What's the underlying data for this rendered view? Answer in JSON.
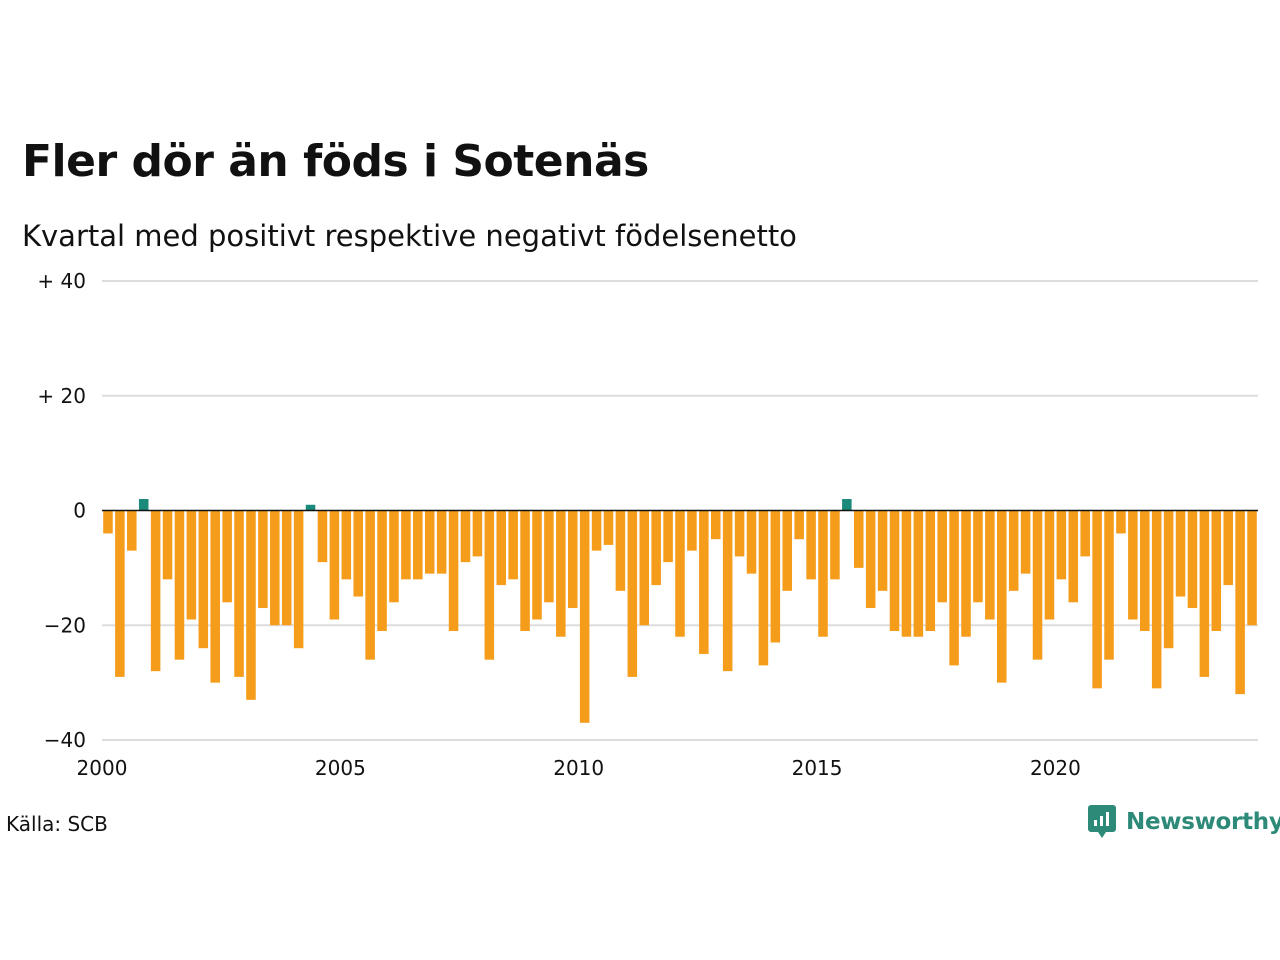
{
  "header": {
    "title": "Fler dör än föds i Sotenäs",
    "subtitle": "Kvartal med positivt respektive negativt födelsenetto"
  },
  "footer": {
    "source": "Källa: SCB",
    "brand": "Newsworthy",
    "brand_icon": "newsworthy-logo-icon"
  },
  "colors": {
    "positive": "#1a8a7a",
    "negative": "#f59c1a",
    "grid": "#dddddd",
    "zero_line": "#111111",
    "brand": "#2e8a78"
  },
  "chart_data": {
    "type": "bar",
    "ylim": [
      -40,
      40
    ],
    "xlim": [
      2000,
      2024.25
    ],
    "y_ticks": [
      {
        "value": 40,
        "label": "+ 40"
      },
      {
        "value": 20,
        "label": "+ 20"
      },
      {
        "value": 0,
        "label": "0"
      },
      {
        "value": -20,
        "label": "−20"
      },
      {
        "value": -40,
        "label": "−40"
      }
    ],
    "x_ticks": [
      {
        "value": 2000,
        "label": "2000"
      },
      {
        "value": 2005,
        "label": "2005"
      },
      {
        "value": 2010,
        "label": "2010"
      },
      {
        "value": 2015,
        "label": "2015"
      },
      {
        "value": 2020,
        "label": "2020"
      }
    ],
    "grid": true,
    "legend": "none",
    "start_year": 2000,
    "quarters_per_year": 4,
    "values": [
      -4,
      -29,
      -7,
      2,
      -28,
      -12,
      -26,
      -19,
      -24,
      -30,
      -16,
      -29,
      -33,
      -17,
      -20,
      -20,
      -24,
      1,
      -9,
      -19,
      -12,
      -15,
      -26,
      -21,
      -16,
      -12,
      -12,
      -11,
      -11,
      -21,
      -9,
      -8,
      -26,
      -13,
      -12,
      -21,
      -19,
      -16,
      -22,
      -17,
      -37,
      -7,
      -6,
      -14,
      -29,
      -20,
      -13,
      -9,
      -22,
      -7,
      -25,
      -5,
      -28,
      -8,
      -11,
      -27,
      -23,
      -14,
      -5,
      -12,
      -22,
      -12,
      2,
      -10,
      -17,
      -14,
      -21,
      -22,
      -22,
      -21,
      -16,
      -27,
      -22,
      -16,
      -19,
      -30,
      -14,
      -11,
      -26,
      -19,
      -12,
      -16,
      -8,
      -31,
      -26,
      -4,
      -19,
      -21,
      -31,
      -24,
      -15,
      -17,
      -29,
      -21,
      -13,
      -32,
      -20
    ]
  }
}
